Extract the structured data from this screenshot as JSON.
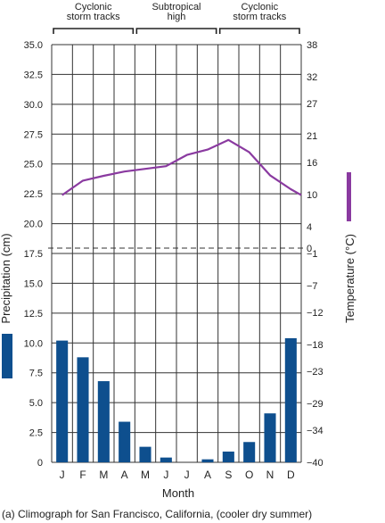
{
  "chart_data": {
    "type": "bar+line",
    "caption": "(a) Climograph for San Francisco, California, (cooler dry summer)",
    "xlabel": "Month",
    "ylabel_left": "Precipitation (cm)",
    "ylabel_right": "Temperature (°C)",
    "categories": [
      "J",
      "F",
      "M",
      "A",
      "M",
      "J",
      "J",
      "A",
      "S",
      "O",
      "N",
      "D"
    ],
    "precipitation": {
      "values": [
        10.2,
        8.8,
        6.8,
        3.4,
        1.3,
        0.4,
        0.0,
        0.25,
        0.9,
        1.7,
        4.1,
        10.4
      ],
      "ylim": [
        0,
        35
      ],
      "ticks": [
        "0",
        "2.5",
        "5.0",
        "7.5",
        "10.0",
        "12.5",
        "15.0",
        "17.5",
        "20.0",
        "22.5",
        "25.0",
        "27.5",
        "30.0",
        "32.5",
        "35.0"
      ],
      "color": "#0e4f8e"
    },
    "temperature": {
      "x": [
        0,
        1,
        2,
        3,
        4,
        5,
        6,
        7,
        8,
        9,
        10,
        11,
        11.5
      ],
      "values": [
        9.9,
        12.6,
        13.5,
        14.3,
        14.8,
        15.3,
        17.4,
        18.4,
        20.2,
        17.9,
        13.6,
        11.0,
        9.9
      ],
      "ylim": [
        -40,
        38
      ],
      "ticks": [
        "38",
        "32",
        "27",
        "21",
        "16",
        "10",
        "4",
        "0",
        "−1",
        "−7",
        "−12",
        "−18",
        "−23",
        "−29",
        "−34",
        "−40"
      ],
      "zero_line": 0,
      "color": "#8a3aa0"
    },
    "bands": [
      {
        "label": [
          "Cyclonic",
          "storm tracks"
        ],
        "from_month": 0,
        "to_month": 4
      },
      {
        "label": [
          "Subtropical",
          "high"
        ],
        "from_month": 4,
        "to_month": 8
      },
      {
        "label": [
          "Cyclonic",
          "storm tracks"
        ],
        "from_month": 8,
        "to_month": 12
      }
    ],
    "grid": true
  }
}
